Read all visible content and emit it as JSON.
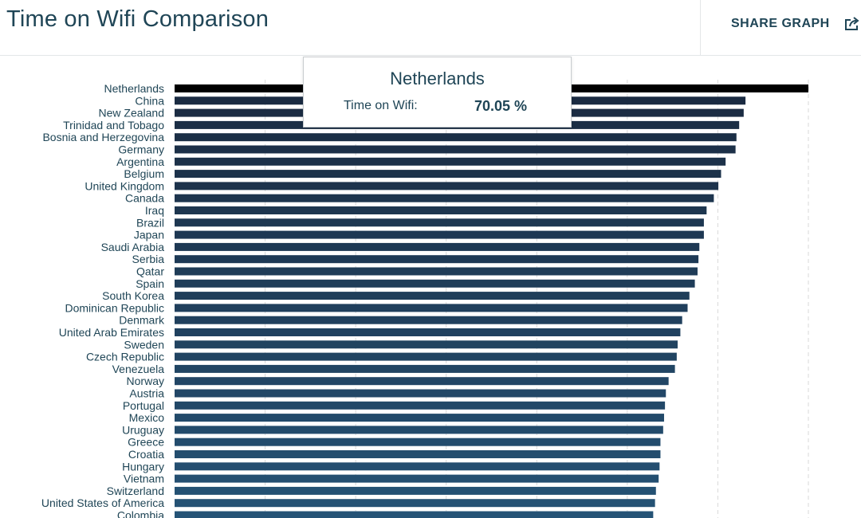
{
  "header": {
    "title": "Time on Wifi Comparison",
    "share_label": "SHARE GRAPH"
  },
  "tooltip": {
    "country": "Netherlands",
    "metric_label": "Time on Wifi:",
    "metric_value": "70.05 %"
  },
  "colors": {
    "highlight_bar": "#000000",
    "bar_top": "#1a2a40",
    "bar_bottom": "#255376",
    "gridline": "#d9d9d9",
    "label_text": "#1f4556"
  },
  "chart_data": {
    "type": "bar",
    "orientation": "horizontal",
    "highlighted": "Netherlands",
    "xlim": [
      0,
      70.05
    ],
    "grid": true,
    "categories": [
      "Netherlands",
      "China",
      "New Zealand",
      "Trinidad and Tobago",
      "Bosnia and Herzegovina",
      "Germany",
      "Argentina",
      "Belgium",
      "United Kingdom",
      "Canada",
      "Iraq",
      "Brazil",
      "Japan",
      "Saudi Arabia",
      "Serbia",
      "Qatar",
      "Spain",
      "South Korea",
      "Dominican Republic",
      "Denmark",
      "United Arab Emirates",
      "Sweden",
      "Czech Republic",
      "Venezuela",
      "Norway",
      "Austria",
      "Portugal",
      "Mexico",
      "Uruguay",
      "Greece",
      "Croatia",
      "Hungary",
      "Vietnam",
      "Switzerland",
      "United States of America",
      "Colombia"
    ],
    "values": [
      70.05,
      63.1,
      62.9,
      62.4,
      62.1,
      62.0,
      60.9,
      60.4,
      60.1,
      59.6,
      58.8,
      58.5,
      58.5,
      58.0,
      57.9,
      57.8,
      57.5,
      56.9,
      56.7,
      56.1,
      55.9,
      55.6,
      55.5,
      55.3,
      54.6,
      54.3,
      54.2,
      54.1,
      54.0,
      53.7,
      53.7,
      53.6,
      53.5,
      53.2,
      53.1,
      52.9
    ]
  }
}
